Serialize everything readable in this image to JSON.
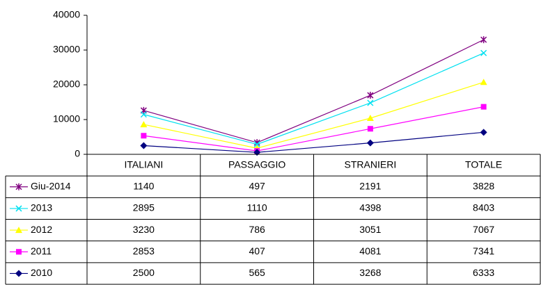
{
  "chart_data": {
    "type": "line",
    "stacked": true,
    "categories": [
      "ITALIANI",
      "PASSAGGIO",
      "STRANIERI",
      "TOTALE"
    ],
    "series": [
      {
        "name": "Giu-2014",
        "color": "#800080",
        "marker": "star",
        "values": [
          1140,
          497,
          2191,
          3828
        ]
      },
      {
        "name": "2013",
        "color": "#00e0f0",
        "marker": "x",
        "values": [
          2895,
          1110,
          4398,
          8403
        ]
      },
      {
        "name": "2012",
        "color": "#ffff00",
        "marker": "triangle",
        "values": [
          3230,
          786,
          3051,
          7067
        ]
      },
      {
        "name": "2011",
        "color": "#ff00ff",
        "marker": "square",
        "values": [
          2853,
          407,
          4081,
          7341
        ]
      },
      {
        "name": "2010",
        "color": "#000080",
        "marker": "diamond",
        "values": [
          2500,
          565,
          3268,
          6333
        ]
      }
    ],
    "ylim": [
      0,
      40000
    ],
    "yticks": [
      0,
      10000,
      20000,
      30000,
      40000
    ],
    "grid": false
  }
}
